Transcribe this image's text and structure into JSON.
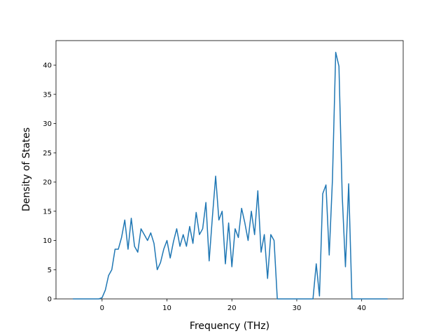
{
  "chart_data": {
    "type": "line",
    "xlabel": "Frequency (THz)",
    "ylabel": "Density of States",
    "x": [
      -4.5,
      -4,
      -3.5,
      -3,
      -2.5,
      -2,
      -1.5,
      -1,
      -0.5,
      0,
      0.5,
      1,
      1.5,
      2,
      2.5,
      3,
      3.5,
      4,
      4.5,
      5,
      5.5,
      6,
      6.5,
      7,
      7.5,
      8,
      8.5,
      9,
      9.5,
      10,
      10.5,
      11,
      11.5,
      12,
      12.5,
      13,
      13.5,
      14,
      14.5,
      15,
      15.5,
      16,
      16.5,
      17,
      17.5,
      18,
      18.5,
      19,
      19.5,
      20,
      20.5,
      21,
      21.5,
      22,
      22.5,
      23,
      23.5,
      24,
      24.5,
      25,
      25.5,
      26,
      26.5,
      27,
      27.5,
      28,
      28.5,
      29,
      29.5,
      30,
      30.5,
      31,
      31.5,
      32,
      32.5,
      33,
      33.5,
      34,
      34.5,
      35,
      35.5,
      36,
      36.5,
      37,
      37.5,
      38,
      38.5,
      39,
      39.5,
      40,
      40.5,
      41,
      41.5,
      42,
      42.5,
      43,
      43.5,
      44
    ],
    "series": [
      {
        "color": "#1f77b4",
        "values": [
          0,
          0,
          0,
          0,
          0,
          0,
          0,
          0,
          0,
          0.2,
          1.5,
          4,
          5,
          8.5,
          8.5,
          10.5,
          13.5,
          8.5,
          13.8,
          9,
          8,
          12,
          11,
          10,
          11.3,
          9.5,
          5,
          6.2,
          8.5,
          10,
          7,
          9.8,
          12,
          9,
          11,
          9,
          12.4,
          9.5,
          14.8,
          11,
          12,
          16.5,
          6.5,
          14,
          21,
          13.5,
          15,
          6,
          13,
          5.5,
          12,
          10.5,
          15.5,
          13,
          10,
          15,
          11,
          18.5,
          8,
          11,
          3.5,
          11,
          10,
          0,
          0,
          0,
          0,
          0,
          0,
          0,
          0,
          0,
          0,
          0,
          0,
          6,
          0.5,
          18,
          19.5,
          7.5,
          20.5,
          42.2,
          39.8,
          17.8,
          5.5,
          19.7,
          0,
          0,
          0,
          0,
          0,
          0,
          0,
          0,
          0,
          0,
          0,
          0
        ]
      }
    ],
    "xlim": [
      -7.1,
      46.4
    ],
    "ylim": [
      0,
      44.2
    ],
    "xticks": [
      0,
      10,
      20,
      30,
      40
    ],
    "yticks": [
      0,
      5,
      10,
      15,
      20,
      25,
      30,
      35,
      40
    ]
  }
}
